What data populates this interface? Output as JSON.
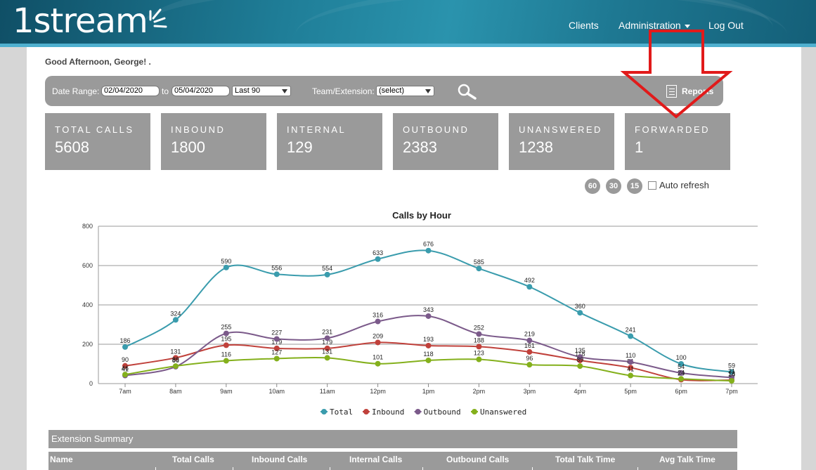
{
  "header": {
    "logo_text": "1stream",
    "nav": {
      "clients": "Clients",
      "administration": "Administration",
      "logout": "Log Out"
    }
  },
  "greeting": "Good Afternoon, George!  .",
  "filters": {
    "date_range_label": "Date Range:",
    "date_from": "02/04/2020",
    "to_label": "to",
    "date_to": "05/04/2020",
    "range_select": "Last 90",
    "team_label": "Team/Extension:",
    "team_select": "(select)",
    "reports_label": "Reports"
  },
  "stats": [
    {
      "label": "TOTAL CALLS",
      "value": "5608"
    },
    {
      "label": "INBOUND",
      "value": "1800"
    },
    {
      "label": "INTERNAL",
      "value": "129"
    },
    {
      "label": "OUTBOUND",
      "value": "2383"
    },
    {
      "label": "UNANSWERED",
      "value": "1238"
    },
    {
      "label": "FORWARDED",
      "value": "1"
    }
  ],
  "refresh": {
    "buttons": [
      "60",
      "30",
      "15"
    ],
    "auto_label": "Auto refresh"
  },
  "chart_data": {
    "type": "line",
    "title": "Calls by Hour",
    "categories": [
      "7am",
      "8am",
      "9am",
      "10am",
      "11am",
      "12pm",
      "1pm",
      "2pm",
      "3pm",
      "4pm",
      "5pm",
      "6pm",
      "7pm"
    ],
    "ylim": [
      0,
      800
    ],
    "yticks": [
      "0",
      "200",
      "400",
      "600",
      "800"
    ],
    "grid": true,
    "legend_position": "bottom",
    "series": [
      {
        "name": "Total",
        "color": "#3a9cad",
        "values": [
          186,
          324,
          590,
          556,
          554,
          633,
          676,
          585,
          492,
          360,
          241,
          100,
          59
        ]
      },
      {
        "name": "Inbound",
        "color": "#c0413b",
        "values": [
          90,
          131,
          195,
          179,
          179,
          209,
          193,
          188,
          161,
          118,
          81,
          20,
          18
        ]
      },
      {
        "name": "Outbound",
        "color": "#7b5a8a",
        "values": [
          41,
          86,
          255,
          227,
          231,
          316,
          343,
          252,
          219,
          135,
          110,
          54,
          31
        ]
      },
      {
        "name": "Unanswered",
        "color": "#84b01c",
        "values": [
          46,
          89,
          116,
          127,
          131,
          101,
          118,
          123,
          96,
          89,
          41,
          24,
          14
        ]
      }
    ]
  },
  "extension_summary": {
    "title": "Extension Summary",
    "columns": [
      "Name",
      "Total Calls",
      "Inbound Calls",
      "Internal Calls",
      "Outbound Calls",
      "Total Talk Time",
      "Avg Talk Time"
    ]
  }
}
